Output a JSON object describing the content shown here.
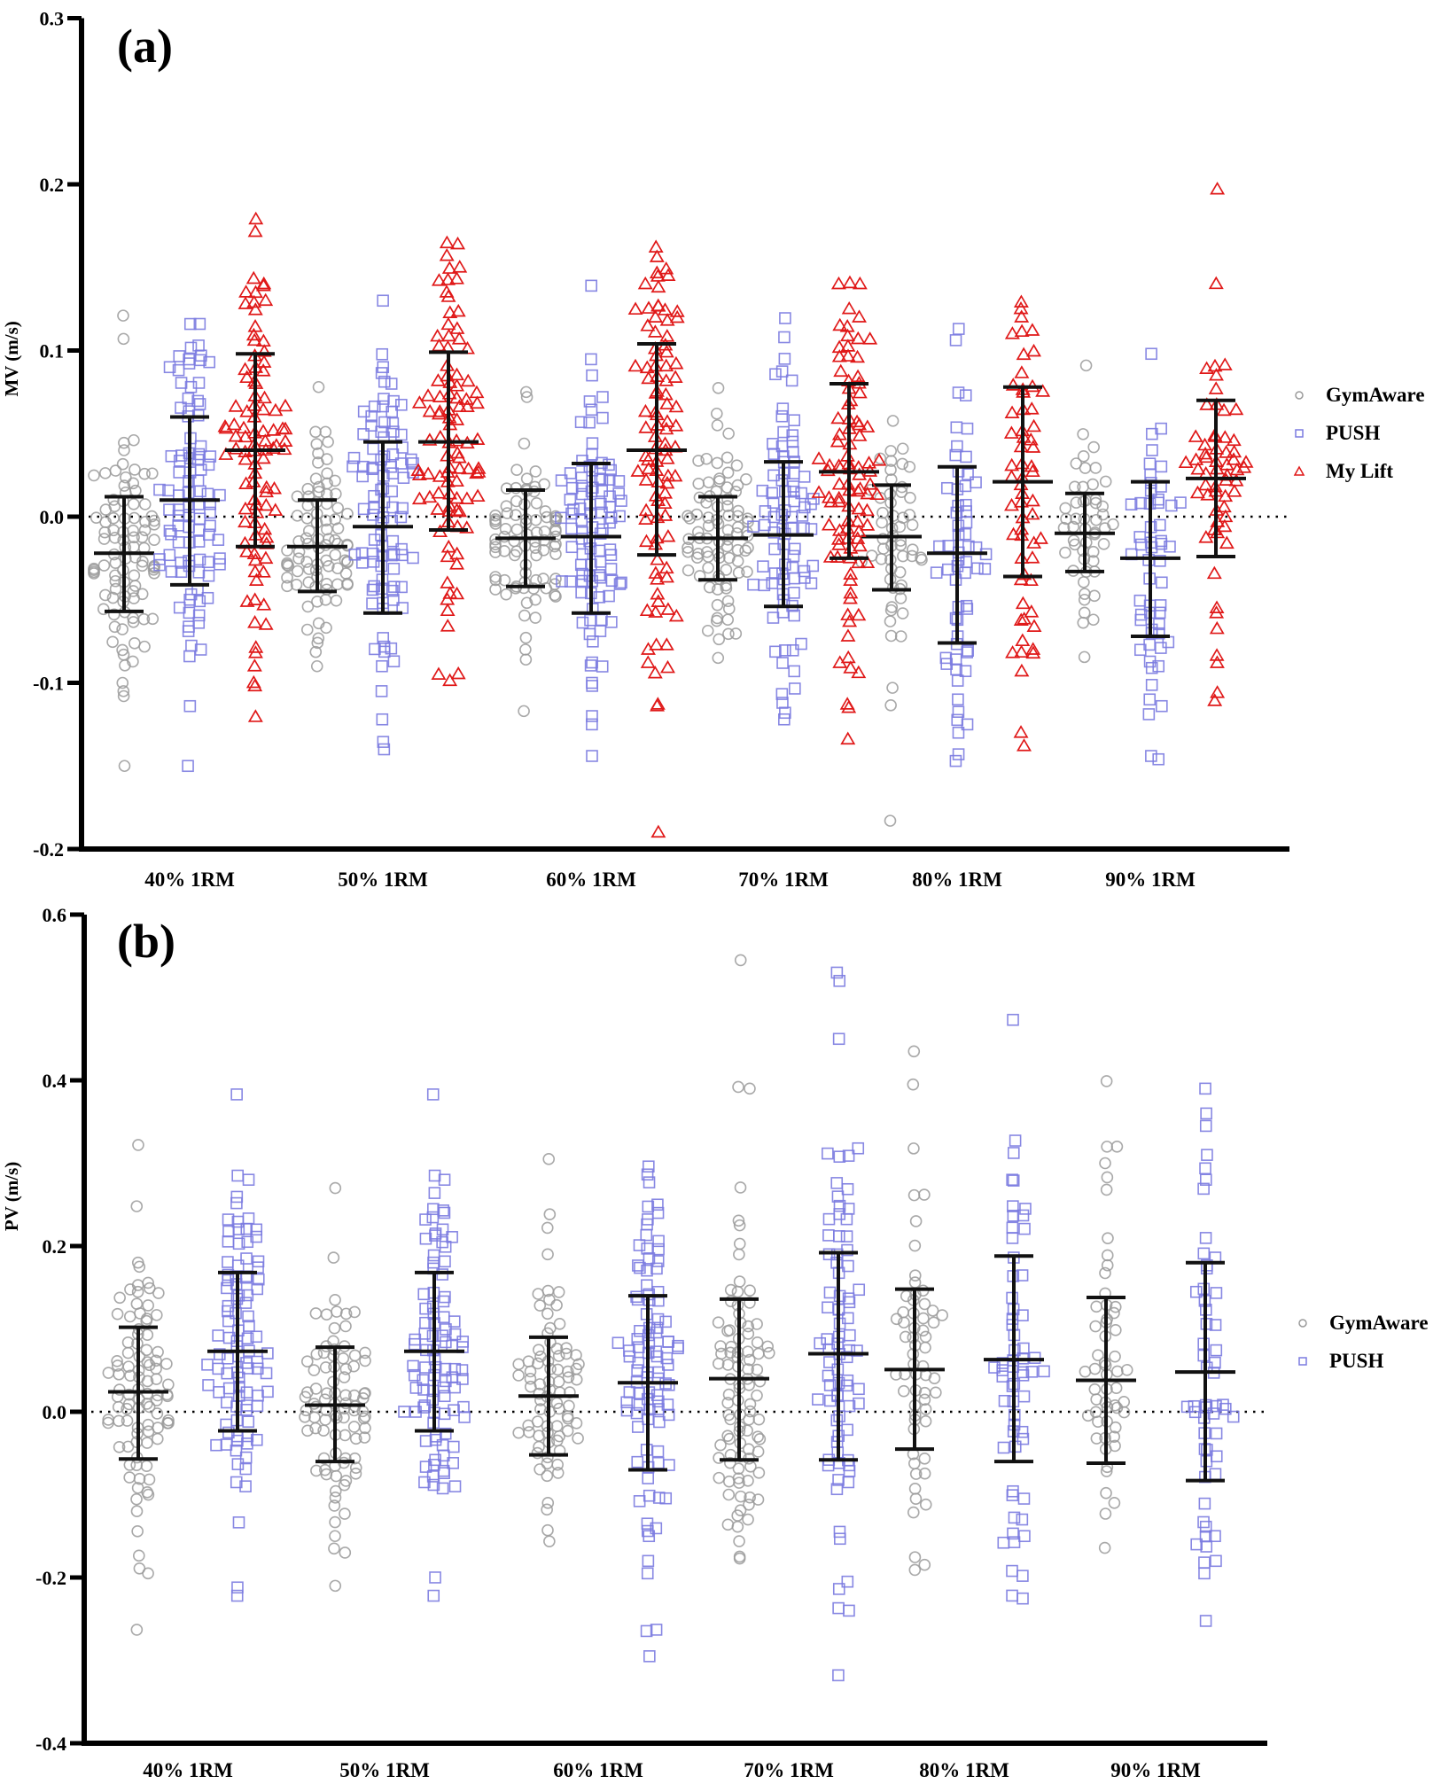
{
  "chart_data": [
    {
      "type": "scatter",
      "subtype": "dot-plot-with-mean-sd",
      "panel_label": "(a)",
      "ylabel": "MV (m/s)",
      "xlabel": "",
      "ylim": [
        -0.2,
        0.3
      ],
      "yticks": [
        -0.2,
        -0.1,
        0.0,
        0.1,
        0.2,
        0.3
      ],
      "ytick_labels": [
        "-0.2",
        "-0.1",
        "0.0",
        "0.1",
        "0.2",
        "0.3"
      ],
      "categories": [
        "40% 1RM",
        "50% 1RM",
        "60% 1RM",
        "70% 1RM",
        "80% 1RM",
        "90% 1RM"
      ],
      "reference_line": 0.0,
      "legend": {
        "position": "right",
        "entries": [
          "GymAware",
          "PUSH",
          "My Lift"
        ]
      },
      "series": [
        {
          "name": "GymAware",
          "marker": "circle",
          "color": "#9a9a9a",
          "groups": [
            {
              "mean": -0.022,
              "sd_low": -0.057,
              "sd_high": 0.012,
              "n": 95,
              "extremes": [
                0.121,
                0.107,
                0.046,
                0.04,
                -0.1,
                -0.105,
                -0.15
              ]
            },
            {
              "mean": -0.018,
              "sd_low": -0.045,
              "sd_high": 0.01,
              "n": 85,
              "extremes": [
                0.078,
                0.051,
                0.045,
                -0.068,
                -0.09
              ]
            },
            {
              "mean": -0.013,
              "sd_low": -0.042,
              "sd_high": 0.016,
              "n": 85,
              "extremes": [
                0.075,
                0.072,
                0.044,
                -0.08,
                -0.086,
                -0.117
              ]
            },
            {
              "mean": -0.013,
              "sd_low": -0.038,
              "sd_high": 0.012,
              "n": 85,
              "extremes": [
                0.062,
                0.055,
                0.05,
                -0.062,
                -0.085
              ]
            },
            {
              "mean": -0.012,
              "sd_low": -0.044,
              "sd_high": 0.019,
              "n": 55,
              "extremes": [
                0.035,
                0.03,
                -0.063,
                -0.072,
                -0.103,
                -0.183
              ]
            },
            {
              "mean": -0.01,
              "sd_low": -0.033,
              "sd_high": 0.014,
              "n": 50,
              "extremes": [
                0.091,
                0.032,
                -0.05,
                -0.062
              ]
            }
          ]
        },
        {
          "name": "PUSH",
          "marker": "square",
          "color": "#7b7be0",
          "groups": [
            {
              "mean": 0.01,
              "sd_low": -0.041,
              "sd_high": 0.06,
              "n": 95,
              "extremes": [
                0.116,
                0.103,
                0.093,
                0.09,
                -0.08,
                -0.084,
                -0.114,
                -0.15
              ]
            },
            {
              "mean": -0.006,
              "sd_low": -0.058,
              "sd_high": 0.045,
              "n": 95,
              "extremes": [
                0.13,
                0.09,
                0.08,
                -0.09,
                -0.105,
                -0.122,
                -0.14
              ]
            },
            {
              "mean": -0.012,
              "sd_low": -0.058,
              "sd_high": 0.032,
              "n": 95,
              "extremes": [
                0.139,
                0.085,
                0.072,
                -0.1,
                -0.12,
                -0.125,
                -0.144
              ]
            },
            {
              "mean": -0.011,
              "sd_low": -0.054,
              "sd_high": 0.033,
              "n": 85,
              "extremes": [
                0.108,
                0.095,
                0.065,
                -0.088,
                -0.093,
                -0.112,
                -0.118,
                -0.122
              ]
            },
            {
              "mean": -0.022,
              "sd_low": -0.076,
              "sd_high": 0.03,
              "n": 60,
              "extremes": [
                0.113,
                0.073,
                0.053,
                -0.085,
                -0.11,
                -0.125,
                -0.13,
                -0.143,
                -0.147
              ]
            },
            {
              "mean": -0.025,
              "sd_low": -0.072,
              "sd_high": 0.021,
              "n": 55,
              "extremes": [
                0.098,
                0.053,
                0.04,
                -0.09,
                -0.11,
                -0.114,
                -0.144,
                -0.146
              ]
            }
          ]
        },
        {
          "name": "My Lift",
          "marker": "triangle",
          "color": "#e01818",
          "groups": [
            {
              "mean": 0.04,
              "sd_low": -0.018,
              "sd_high": 0.098,
              "n": 95,
              "extremes": [
                0.179,
                0.14,
                0.135,
                0.13,
                0.128,
                -0.065,
                -0.082,
                -0.09,
                -0.1,
                -0.102
              ]
            },
            {
              "mean": 0.045,
              "sd_low": -0.008,
              "sd_high": 0.099,
              "n": 95,
              "extremes": [
                0.164,
                0.157,
                0.15,
                0.142,
                0.135,
                -0.04,
                -0.05,
                -0.066,
                -0.095
              ]
            },
            {
              "mean": 0.04,
              "sd_low": -0.023,
              "sd_high": 0.104,
              "n": 95,
              "extremes": [
                0.149,
                0.145,
                0.14,
                0.138,
                -0.06,
                -0.08,
                -0.088,
                -0.113,
                -0.114,
                -0.19
              ]
            },
            {
              "mean": 0.027,
              "sd_low": -0.025,
              "sd_high": 0.08,
              "n": 95,
              "extremes": [
                0.14,
                0.125,
                0.12,
                0.115,
                -0.072,
                -0.085,
                -0.088,
                -0.113,
                -0.115
              ]
            },
            {
              "mean": 0.021,
              "sd_low": -0.036,
              "sd_high": 0.078,
              "n": 60,
              "extremes": [
                0.129,
                0.125,
                0.12,
                0.11,
                -0.08,
                -0.082,
                -0.13,
                -0.138
              ]
            },
            {
              "mean": 0.023,
              "sd_low": -0.024,
              "sd_high": 0.07,
              "n": 60,
              "extremes": [
                0.197,
                0.089,
                0.085,
                -0.055,
                -0.058,
                -0.088,
                -0.106
              ]
            }
          ]
        }
      ]
    },
    {
      "type": "scatter",
      "subtype": "dot-plot-with-mean-sd",
      "panel_label": "(b)",
      "ylabel": "PV (m/s)",
      "xlabel": "",
      "ylim": [
        -0.4,
        0.6
      ],
      "yticks": [
        -0.4,
        -0.2,
        0.0,
        0.2,
        0.4,
        0.6
      ],
      "ytick_labels": [
        "-0.4",
        "-0.2",
        "0.0",
        "0.2",
        "0.4",
        "0.6"
      ],
      "categories": [
        "40% 1RM",
        "50% 1RM",
        "60% 1RM",
        "70% 1RM",
        "80% 1RM",
        "90% 1RM"
      ],
      "reference_line": 0.0,
      "legend": {
        "position": "right",
        "entries": [
          "GymAware",
          "PUSH"
        ]
      },
      "series": [
        {
          "name": "GymAware",
          "marker": "circle",
          "color": "#9a9a9a",
          "groups": [
            {
              "mean": 0.024,
              "sd_low": -0.057,
              "sd_high": 0.102,
              "n": 95,
              "extremes": [
                0.322,
                0.248,
                0.18,
                0.175,
                -0.12,
                -0.195,
                -0.263
              ]
            },
            {
              "mean": 0.008,
              "sd_low": -0.06,
              "sd_high": 0.078,
              "n": 90,
              "extremes": [
                0.27,
                0.186,
                0.135,
                -0.15,
                -0.165,
                -0.17
              ]
            },
            {
              "mean": 0.019,
              "sd_low": -0.052,
              "sd_high": 0.09,
              "n": 80,
              "extremes": [
                0.305,
                0.222,
                0.19,
                -0.11,
                -0.118,
                -0.143
              ]
            },
            {
              "mean": 0.04,
              "sd_low": -0.058,
              "sd_high": 0.136,
              "n": 95,
              "extremes": [
                0.545,
                0.392,
                0.39,
                0.225,
                -0.1,
                -0.106
              ]
            },
            {
              "mean": 0.051,
              "sd_low": -0.045,
              "sd_high": 0.148,
              "n": 60,
              "extremes": [
                0.435,
                0.395,
                0.262,
                0.23,
                -0.105,
                -0.112
              ]
            },
            {
              "mean": 0.038,
              "sd_low": -0.062,
              "sd_high": 0.138,
              "n": 55,
              "extremes": [
                0.399,
                0.32,
                0.3,
                0.268,
                -0.11,
                -0.123
              ]
            }
          ]
        },
        {
          "name": "PUSH",
          "marker": "square",
          "color": "#7b7be0",
          "groups": [
            {
              "mean": 0.073,
              "sd_low": -0.023,
              "sd_high": 0.168,
              "n": 95,
              "extremes": [
                0.383,
                0.285,
                0.28,
                0.232,
                0.22,
                -0.085,
                -0.09,
                -0.222
              ]
            },
            {
              "mean": 0.073,
              "sd_low": -0.023,
              "sd_high": 0.168,
              "n": 95,
              "extremes": [
                0.383,
                0.285,
                0.28,
                0.232,
                0.22,
                -0.085,
                -0.09,
                -0.222
              ]
            },
            {
              "mean": 0.035,
              "sd_low": -0.07,
              "sd_high": 0.14,
              "n": 95,
              "extremes": [
                0.296,
                0.25,
                0.24,
                -0.135,
                -0.15,
                -0.18,
                -0.195,
                -0.263,
                -0.295
              ]
            },
            {
              "mean": 0.07,
              "sd_low": -0.058,
              "sd_high": 0.192,
              "n": 80,
              "extremes": [
                0.53,
                0.52,
                0.45,
                0.245,
                -0.085,
                -0.205,
                -0.24,
                -0.318
              ]
            },
            {
              "mean": 0.063,
              "sd_low": -0.06,
              "sd_high": 0.188,
              "n": 60,
              "extremes": [
                0.473,
                0.28,
                0.248,
                0.245,
                -0.13,
                -0.15,
                -0.158,
                -0.198
              ]
            },
            {
              "mean": 0.048,
              "sd_low": -0.083,
              "sd_high": 0.18,
              "n": 55,
              "extremes": [
                0.39,
                0.36,
                0.345,
                0.31,
                0.28,
                -0.15,
                -0.16,
                -0.18,
                -0.195
              ]
            }
          ]
        }
      ]
    }
  ]
}
